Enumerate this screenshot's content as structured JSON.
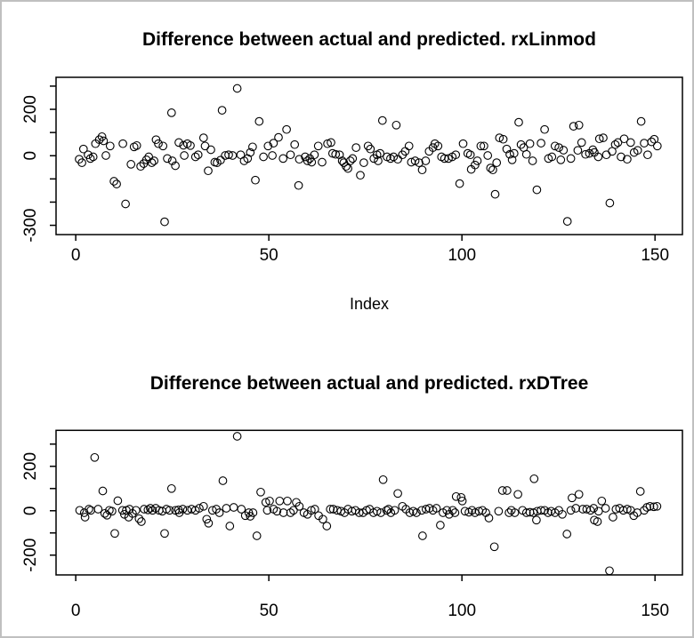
{
  "window": {
    "background": "#ffffff",
    "border_color": "#c0c0c0",
    "text_color": "#000000",
    "point_color": "#000000"
  },
  "chart_data": [
    {
      "type": "scatter",
      "title": "Difference between actual and predicted. rxLinmod",
      "xlabel": "Index",
      "ylabel": "",
      "marker": "open-circle",
      "grid": false,
      "xlim": [
        -5.1,
        157.1
      ],
      "ylim": [
        -340,
        338
      ],
      "x_ticks": [
        0,
        50,
        100,
        150
      ],
      "y_ticks": [
        300,
        200,
        100,
        0,
        -100,
        -200,
        -300
      ],
      "y_tick_labels": [
        200,
        0,
        -300
      ],
      "points": [
        [
          0.9,
          -15
        ],
        [
          1.6,
          -30
        ],
        [
          2.0,
          29
        ],
        [
          3.2,
          4
        ],
        [
          3.8,
          -12
        ],
        [
          4.5,
          -5
        ],
        [
          5.1,
          52
        ],
        [
          6.1,
          69
        ],
        [
          6.8,
          82
        ],
        [
          7.2,
          64
        ],
        [
          7.8,
          1
        ],
        [
          8.9,
          42
        ],
        [
          9.9,
          -110
        ],
        [
          10.6,
          -122
        ],
        [
          12.2,
          52
        ],
        [
          12.9,
          -208
        ],
        [
          14.3,
          -37
        ],
        [
          15.1,
          38
        ],
        [
          15.8,
          44
        ],
        [
          16.8,
          -46
        ],
        [
          17.6,
          -34
        ],
        [
          18.3,
          -18
        ],
        [
          18.9,
          -5
        ],
        [
          19.7,
          -30
        ],
        [
          20.3,
          -22
        ],
        [
          20.8,
          69
        ],
        [
          21.4,
          52
        ],
        [
          22.6,
          42
        ],
        [
          23.0,
          -285
        ],
        [
          23.7,
          -12
        ],
        [
          24.8,
          185
        ],
        [
          25.0,
          -22
        ],
        [
          25.8,
          -43
        ],
        [
          26.7,
          57
        ],
        [
          27.9,
          45
        ],
        [
          28.1,
          1
        ],
        [
          28.9,
          52
        ],
        [
          29.7,
          44
        ],
        [
          31.0,
          -5
        ],
        [
          31.7,
          4
        ],
        [
          33.1,
          77
        ],
        [
          33.5,
          42
        ],
        [
          34.3,
          -65
        ],
        [
          35.0,
          26
        ],
        [
          36.0,
          -28
        ],
        [
          36.6,
          -30
        ],
        [
          37.5,
          -19
        ],
        [
          37.9,
          196
        ],
        [
          38.7,
          1
        ],
        [
          39.6,
          4
        ],
        [
          40.6,
          1
        ],
        [
          41.8,
          290
        ],
        [
          42.7,
          4
        ],
        [
          43.6,
          -22
        ],
        [
          44.5,
          -12
        ],
        [
          45.2,
          14
        ],
        [
          45.8,
          38
        ],
        [
          46.5,
          -105
        ],
        [
          47.5,
          148
        ],
        [
          48.6,
          -5
        ],
        [
          49.8,
          42
        ],
        [
          50.9,
          1
        ],
        [
          51.2,
          54
        ],
        [
          52.5,
          79
        ],
        [
          53.7,
          -12
        ],
        [
          54.6,
          113
        ],
        [
          55.6,
          4
        ],
        [
          56.7,
          48
        ],
        [
          57.7,
          -128
        ],
        [
          57.9,
          -15
        ],
        [
          59.4,
          -5
        ],
        [
          60.0,
          -22
        ],
        [
          60.6,
          -12
        ],
        [
          61.1,
          -28
        ],
        [
          61.8,
          4
        ],
        [
          62.8,
          42
        ],
        [
          63.8,
          -28
        ],
        [
          65.2,
          52
        ],
        [
          66.1,
          57
        ],
        [
          66.5,
          10
        ],
        [
          67.3,
          6
        ],
        [
          68.3,
          4
        ],
        [
          69.0,
          -22
        ],
        [
          69.4,
          -30
        ],
        [
          70.0,
          -46
        ],
        [
          70.5,
          -55
        ],
        [
          71.1,
          -22
        ],
        [
          71.7,
          -12
        ],
        [
          72.6,
          35
        ],
        [
          73.7,
          -84
        ],
        [
          74.6,
          -30
        ],
        [
          75.7,
          42
        ],
        [
          76.3,
          29
        ],
        [
          77.2,
          -12
        ],
        [
          78.0,
          4
        ],
        [
          78.3,
          -22
        ],
        [
          78.8,
          10
        ],
        [
          79.4,
          152
        ],
        [
          80.6,
          -5
        ],
        [
          81.5,
          -12
        ],
        [
          82.3,
          -5
        ],
        [
          83.0,
          132
        ],
        [
          83.4,
          -15
        ],
        [
          84.6,
          4
        ],
        [
          85.3,
          19
        ],
        [
          86.3,
          42
        ],
        [
          86.9,
          -28
        ],
        [
          87.9,
          -22
        ],
        [
          88.9,
          -30
        ],
        [
          89.7,
          -61
        ],
        [
          90.6,
          -22
        ],
        [
          91.5,
          19
        ],
        [
          92.5,
          35
        ],
        [
          93.0,
          52
        ],
        [
          93.8,
          42
        ],
        [
          94.7,
          -5
        ],
        [
          95.5,
          -12
        ],
        [
          96.5,
          -12
        ],
        [
          97.5,
          -5
        ],
        [
          98.4,
          4
        ],
        [
          99.4,
          -120
        ],
        [
          100.3,
          52
        ],
        [
          101.5,
          10
        ],
        [
          102.2,
          4
        ],
        [
          102.4,
          -59
        ],
        [
          103.4,
          -40
        ],
        [
          104.0,
          -22
        ],
        [
          104.9,
          42
        ],
        [
          105.7,
          42
        ],
        [
          106.7,
          1
        ],
        [
          107.4,
          -53
        ],
        [
          108.0,
          -61
        ],
        [
          108.6,
          -166
        ],
        [
          109.0,
          -30
        ],
        [
          109.7,
          77
        ],
        [
          110.7,
          71
        ],
        [
          111.6,
          29
        ],
        [
          112.4,
          6
        ],
        [
          113.0,
          -18
        ],
        [
          113.5,
          10
        ],
        [
          114.7,
          144
        ],
        [
          115.3,
          48
        ],
        [
          116.0,
          35
        ],
        [
          116.7,
          6
        ],
        [
          117.6,
          52
        ],
        [
          118.3,
          -22
        ],
        [
          119.4,
          -147
        ],
        [
          120.5,
          54
        ],
        [
          121.4,
          113
        ],
        [
          122.4,
          -12
        ],
        [
          123.3,
          -5
        ],
        [
          124.1,
          42
        ],
        [
          125.1,
          35
        ],
        [
          125.6,
          -18
        ],
        [
          126.3,
          24
        ],
        [
          127.3,
          -283
        ],
        [
          128.2,
          -12
        ],
        [
          128.9,
          127
        ],
        [
          130.0,
          23
        ],
        [
          130.3,
          132
        ],
        [
          131.0,
          57
        ],
        [
          132.0,
          6
        ],
        [
          133.0,
          10
        ],
        [
          133.9,
          26
        ],
        [
          134.3,
          14
        ],
        [
          135.3,
          -5
        ],
        [
          135.6,
          73
        ],
        [
          136.6,
          77
        ],
        [
          137.4,
          4
        ],
        [
          138.3,
          -204
        ],
        [
          138.9,
          19
        ],
        [
          139.7,
          48
        ],
        [
          140.4,
          57
        ],
        [
          141.2,
          -5
        ],
        [
          142.0,
          73
        ],
        [
          142.8,
          -15
        ],
        [
          143.7,
          57
        ],
        [
          144.6,
          14
        ],
        [
          145.5,
          23
        ],
        [
          146.4,
          148
        ],
        [
          147.2,
          54
        ],
        [
          148.1,
          4
        ],
        [
          149.1,
          60
        ],
        [
          149.8,
          71
        ],
        [
          150.6,
          42
        ]
      ]
    },
    {
      "type": "scatter",
      "title": "Difference between actual and predicted. rxDTree",
      "xlabel": "",
      "ylabel": "",
      "marker": "open-circle",
      "grid": false,
      "xlim": [
        -5.1,
        157.1
      ],
      "ylim": [
        -289,
        362
      ],
      "x_ticks": [
        0,
        50,
        100,
        150
      ],
      "y_ticks": [
        300,
        200,
        100,
        0,
        -100,
        -200
      ],
      "y_tick_labels": [
        200,
        0,
        -200
      ],
      "points": [
        [
          1.0,
          2
        ],
        [
          2.2,
          -9
        ],
        [
          2.4,
          -29
        ],
        [
          3.4,
          7
        ],
        [
          3.9,
          2
        ],
        [
          4.9,
          240
        ],
        [
          5.8,
          7
        ],
        [
          7.0,
          89
        ],
        [
          7.5,
          -12
        ],
        [
          8.1,
          -20
        ],
        [
          8.7,
          2
        ],
        [
          9.4,
          -2
        ],
        [
          10.1,
          -102
        ],
        [
          10.9,
          45
        ],
        [
          12.1,
          2
        ],
        [
          12.6,
          -16
        ],
        [
          13.1,
          2
        ],
        [
          13.7,
          -29
        ],
        [
          13.9,
          7
        ],
        [
          14.7,
          -12
        ],
        [
          15.6,
          2
        ],
        [
          16.4,
          -36
        ],
        [
          17.0,
          -49
        ],
        [
          17.7,
          7
        ],
        [
          18.7,
          4
        ],
        [
          19.3,
          11
        ],
        [
          19.9,
          2
        ],
        [
          20.7,
          11
        ],
        [
          21.6,
          2
        ],
        [
          22.4,
          -2
        ],
        [
          23.0,
          -102
        ],
        [
          23.5,
          7
        ],
        [
          24.3,
          2
        ],
        [
          24.8,
          100
        ],
        [
          25.8,
          2
        ],
        [
          26.6,
          4
        ],
        [
          26.8,
          -9
        ],
        [
          27.7,
          7
        ],
        [
          28.9,
          2
        ],
        [
          30.0,
          7
        ],
        [
          31.0,
          2
        ],
        [
          32.0,
          11
        ],
        [
          33.1,
          20
        ],
        [
          33.9,
          -38
        ],
        [
          34.4,
          -56
        ],
        [
          35.4,
          2
        ],
        [
          36.4,
          7
        ],
        [
          37.2,
          -9
        ],
        [
          38.1,
          135
        ],
        [
          39.0,
          11
        ],
        [
          39.9,
          -69
        ],
        [
          40.9,
          15
        ],
        [
          41.8,
          335
        ],
        [
          42.9,
          7
        ],
        [
          43.9,
          -22
        ],
        [
          44.8,
          -9
        ],
        [
          45.2,
          -25
        ],
        [
          45.9,
          -9
        ],
        [
          46.9,
          -113
        ],
        [
          47.9,
          84
        ],
        [
          49.2,
          38
        ],
        [
          49.6,
          2
        ],
        [
          50.2,
          44
        ],
        [
          51.2,
          7
        ],
        [
          52.1,
          -2
        ],
        [
          52.8,
          44
        ],
        [
          53.8,
          -9
        ],
        [
          54.8,
          44
        ],
        [
          55.6,
          -9
        ],
        [
          56.4,
          2
        ],
        [
          57.1,
          38
        ],
        [
          57.9,
          20
        ],
        [
          59.1,
          -9
        ],
        [
          60.0,
          -16
        ],
        [
          61.0,
          2
        ],
        [
          61.9,
          7
        ],
        [
          62.9,
          -22
        ],
        [
          64.0,
          -38
        ],
        [
          65.0,
          -69
        ],
        [
          65.9,
          7
        ],
        [
          66.7,
          7
        ],
        [
          67.7,
          2
        ],
        [
          68.7,
          -2
        ],
        [
          69.6,
          -9
        ],
        [
          70.5,
          7
        ],
        [
          71.5,
          -2
        ],
        [
          72.4,
          2
        ],
        [
          73.4,
          -9
        ],
        [
          74.4,
          -9
        ],
        [
          75.3,
          2
        ],
        [
          76.1,
          7
        ],
        [
          77.1,
          -9
        ],
        [
          78.0,
          -2
        ],
        [
          79.0,
          -9
        ],
        [
          79.6,
          140
        ],
        [
          80.5,
          2
        ],
        [
          81.0,
          7
        ],
        [
          81.6,
          -9
        ],
        [
          82.6,
          2
        ],
        [
          83.4,
          78
        ],
        [
          84.6,
          20
        ],
        [
          85.5,
          7
        ],
        [
          86.5,
          -9
        ],
        [
          87.4,
          -2
        ],
        [
          88.2,
          -9
        ],
        [
          89.6,
          2
        ],
        [
          89.8,
          -113
        ],
        [
          90.7,
          7
        ],
        [
          91.6,
          11
        ],
        [
          92.5,
          2
        ],
        [
          93.4,
          11
        ],
        [
          94.4,
          -65
        ],
        [
          95.1,
          -9
        ],
        [
          96.1,
          2
        ],
        [
          96.7,
          -16
        ],
        [
          97.6,
          2
        ],
        [
          98.2,
          -9
        ],
        [
          98.5,
          64
        ],
        [
          99.8,
          60
        ],
        [
          100.1,
          44
        ],
        [
          100.8,
          -2
        ],
        [
          101.8,
          -7
        ],
        [
          102.6,
          2
        ],
        [
          103.4,
          -9
        ],
        [
          104.4,
          -2
        ],
        [
          105.3,
          2
        ],
        [
          106.2,
          -9
        ],
        [
          107.0,
          -33
        ],
        [
          108.4,
          -162
        ],
        [
          109.5,
          -2
        ],
        [
          110.5,
          91
        ],
        [
          111.7,
          91
        ],
        [
          112.2,
          -9
        ],
        [
          112.8,
          2
        ],
        [
          113.7,
          -9
        ],
        [
          114.5,
          74
        ],
        [
          115.7,
          2
        ],
        [
          116.7,
          -9
        ],
        [
          117.6,
          -7
        ],
        [
          118.5,
          -9
        ],
        [
          118.7,
          144
        ],
        [
          119.3,
          -42
        ],
        [
          119.5,
          -2
        ],
        [
          120.5,
          2
        ],
        [
          121.4,
          2
        ],
        [
          122.3,
          -9
        ],
        [
          123.1,
          -2
        ],
        [
          124.1,
          -9
        ],
        [
          125.1,
          2
        ],
        [
          126.0,
          -16
        ],
        [
          127.2,
          -105
        ],
        [
          128.2,
          2
        ],
        [
          128.5,
          58
        ],
        [
          129.5,
          11
        ],
        [
          130.3,
          74
        ],
        [
          131.3,
          7
        ],
        [
          132.3,
          7
        ],
        [
          133.3,
          2
        ],
        [
          134.1,
          11
        ],
        [
          134.3,
          -42
        ],
        [
          135.1,
          -49
        ],
        [
          135.4,
          -2
        ],
        [
          136.2,
          44
        ],
        [
          137.2,
          11
        ],
        [
          138.2,
          -270
        ],
        [
          139.1,
          -29
        ],
        [
          139.9,
          7
        ],
        [
          140.8,
          11
        ],
        [
          141.8,
          2
        ],
        [
          142.8,
          7
        ],
        [
          143.7,
          2
        ],
        [
          144.5,
          -22
        ],
        [
          145.4,
          -9
        ],
        [
          146.2,
          87
        ],
        [
          147.2,
          2
        ],
        [
          147.9,
          15
        ],
        [
          148.7,
          20
        ],
        [
          149.7,
          18
        ],
        [
          150.5,
          20
        ]
      ]
    }
  ]
}
